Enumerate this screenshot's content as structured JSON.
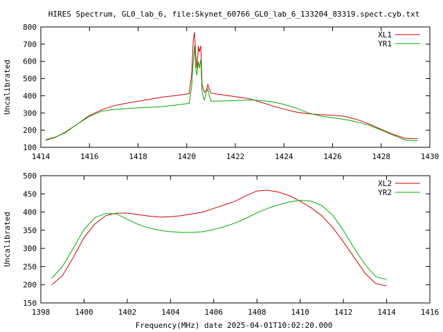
{
  "title": "HIRES Spectrum, GL0_lab_6, file:Skynet_60766_GL0_lab_6_133204_83319.spect.cyb.txt",
  "xlabel_bottom": "Frequency(MHz) date 2025-04-01T10:02:20.000",
  "colors": {
    "red": "#cc0000",
    "green": "#00aa00"
  },
  "chart_data": [
    {
      "type": "line",
      "ylabel": "Uncalibrated",
      "xlim": [
        1414,
        1430
      ],
      "ylim": [
        100,
        800
      ],
      "xticks": [
        1414,
        1416,
        1418,
        1420,
        1422,
        1424,
        1426,
        1428,
        1430
      ],
      "yticks": [
        100,
        200,
        300,
        400,
        500,
        600,
        700,
        800
      ],
      "legend_position": "top-right",
      "series": [
        {
          "name": "XL1",
          "color": "#cc0000",
          "points": [
            [
              1414.2,
              142
            ],
            [
              1414.6,
              158
            ],
            [
              1415.0,
              188
            ],
            [
              1415.5,
              235
            ],
            [
              1416.0,
              285
            ],
            [
              1416.5,
              318
            ],
            [
              1417.0,
              342
            ],
            [
              1417.5,
              356
            ],
            [
              1418.0,
              368
            ],
            [
              1418.5,
              380
            ],
            [
              1419.0,
              392
            ],
            [
              1419.5,
              400
            ],
            [
              1419.9,
              408
            ],
            [
              1420.1,
              412
            ],
            [
              1420.2,
              520
            ],
            [
              1420.27,
              720
            ],
            [
              1420.32,
              770
            ],
            [
              1420.37,
              640
            ],
            [
              1420.42,
              560
            ],
            [
              1420.48,
              690
            ],
            [
              1420.52,
              655
            ],
            [
              1420.58,
              690
            ],
            [
              1420.63,
              470
            ],
            [
              1420.68,
              440
            ],
            [
              1420.73,
              420
            ],
            [
              1420.8,
              430
            ],
            [
              1420.87,
              465
            ],
            [
              1420.93,
              440
            ],
            [
              1421.0,
              415
            ],
            [
              1421.5,
              405
            ],
            [
              1422.0,
              395
            ],
            [
              1422.5,
              385
            ],
            [
              1423.0,
              365
            ],
            [
              1423.5,
              342
            ],
            [
              1424.0,
              322
            ],
            [
              1424.5,
              305
            ],
            [
              1425.0,
              295
            ],
            [
              1425.5,
              290
            ],
            [
              1426.0,
              287
            ],
            [
              1426.5,
              280
            ],
            [
              1427.0,
              262
            ],
            [
              1427.5,
              235
            ],
            [
              1428.0,
              205
            ],
            [
              1428.5,
              175
            ],
            [
              1429.0,
              152
            ],
            [
              1429.5,
              150
            ]
          ]
        },
        {
          "name": "YR1",
          "color": "#00aa00",
          "points": [
            [
              1414.2,
              145
            ],
            [
              1414.6,
              160
            ],
            [
              1415.0,
              185
            ],
            [
              1415.5,
              235
            ],
            [
              1416.0,
              280
            ],
            [
              1416.5,
              310
            ],
            [
              1417.0,
              320
            ],
            [
              1417.5,
              325
            ],
            [
              1418.0,
              330
            ],
            [
              1418.5,
              333
            ],
            [
              1419.0,
              337
            ],
            [
              1419.5,
              345
            ],
            [
              1419.9,
              352
            ],
            [
              1420.1,
              356
            ],
            [
              1420.2,
              450
            ],
            [
              1420.27,
              600
            ],
            [
              1420.32,
              690
            ],
            [
              1420.37,
              560
            ],
            [
              1420.42,
              520
            ],
            [
              1420.48,
              600
            ],
            [
              1420.52,
              560
            ],
            [
              1420.58,
              610
            ],
            [
              1420.63,
              430
            ],
            [
              1420.68,
              390
            ],
            [
              1420.73,
              375
            ],
            [
              1420.8,
              420
            ],
            [
              1420.87,
              440
            ],
            [
              1420.93,
              400
            ],
            [
              1421.0,
              368
            ],
            [
              1421.5,
              370
            ],
            [
              1422.0,
              372
            ],
            [
              1422.5,
              375
            ],
            [
              1423.0,
              373
            ],
            [
              1423.5,
              365
            ],
            [
              1424.0,
              350
            ],
            [
              1424.5,
              328
            ],
            [
              1425.0,
              300
            ],
            [
              1425.5,
              282
            ],
            [
              1426.0,
              272
            ],
            [
              1426.5,
              262
            ],
            [
              1427.0,
              248
            ],
            [
              1427.5,
              228
            ],
            [
              1428.0,
              200
            ],
            [
              1428.5,
              170
            ],
            [
              1429.0,
              142
            ],
            [
              1429.5,
              138
            ]
          ]
        }
      ]
    },
    {
      "type": "line",
      "ylabel": "Uncalibrated",
      "xlabel": "Frequency(MHz) date 2025-04-01T10:02:20.000",
      "xlim": [
        1398,
        1416
      ],
      "ylim": [
        150,
        500
      ],
      "xticks": [
        1398,
        1400,
        1402,
        1404,
        1406,
        1408,
        1410,
        1412,
        1414,
        1416
      ],
      "yticks": [
        150,
        200,
        250,
        300,
        350,
        400,
        450,
        500
      ],
      "legend_position": "top-right",
      "series": [
        {
          "name": "XL2",
          "color": "#cc0000",
          "points": [
            [
              1398.5,
              200
            ],
            [
              1399.0,
              225
            ],
            [
              1399.5,
              275
            ],
            [
              1400.0,
              330
            ],
            [
              1400.5,
              367
            ],
            [
              1401.0,
              390
            ],
            [
              1401.5,
              397
            ],
            [
              1402.0,
              397
            ],
            [
              1402.5,
              393
            ],
            [
              1403.0,
              389
            ],
            [
              1403.5,
              386
            ],
            [
              1404.0,
              387
            ],
            [
              1404.5,
              390
            ],
            [
              1405.0,
              395
            ],
            [
              1405.5,
              400
            ],
            [
              1406.0,
              410
            ],
            [
              1406.5,
              420
            ],
            [
              1407.0,
              430
            ],
            [
              1407.5,
              445
            ],
            [
              1408.0,
              458
            ],
            [
              1408.5,
              460
            ],
            [
              1409.0,
              455
            ],
            [
              1409.5,
              445
            ],
            [
              1410.0,
              430
            ],
            [
              1410.5,
              412
            ],
            [
              1411.0,
              390
            ],
            [
              1411.5,
              358
            ],
            [
              1412.0,
              318
            ],
            [
              1412.5,
              275
            ],
            [
              1413.0,
              232
            ],
            [
              1413.5,
              203
            ],
            [
              1414.0,
              197
            ]
          ]
        },
        {
          "name": "YR2",
          "color": "#00aa00",
          "points": [
            [
              1398.5,
              218
            ],
            [
              1399.0,
              250
            ],
            [
              1399.5,
              300
            ],
            [
              1400.0,
              352
            ],
            [
              1400.5,
              385
            ],
            [
              1401.0,
              396
            ],
            [
              1401.5,
              395
            ],
            [
              1402.0,
              380
            ],
            [
              1402.5,
              366
            ],
            [
              1403.0,
              356
            ],
            [
              1403.5,
              350
            ],
            [
              1404.0,
              346
            ],
            [
              1404.5,
              344
            ],
            [
              1405.0,
              344
            ],
            [
              1405.5,
              346
            ],
            [
              1406.0,
              352
            ],
            [
              1406.5,
              360
            ],
            [
              1407.0,
              370
            ],
            [
              1407.5,
              383
            ],
            [
              1408.0,
              398
            ],
            [
              1408.5,
              410
            ],
            [
              1409.0,
              420
            ],
            [
              1409.5,
              428
            ],
            [
              1410.0,
              432
            ],
            [
              1410.5,
              430
            ],
            [
              1411.0,
              418
            ],
            [
              1411.5,
              392
            ],
            [
              1412.0,
              350
            ],
            [
              1412.5,
              300
            ],
            [
              1413.0,
              256
            ],
            [
              1413.5,
              222
            ],
            [
              1414.0,
              215
            ]
          ]
        }
      ]
    }
  ]
}
